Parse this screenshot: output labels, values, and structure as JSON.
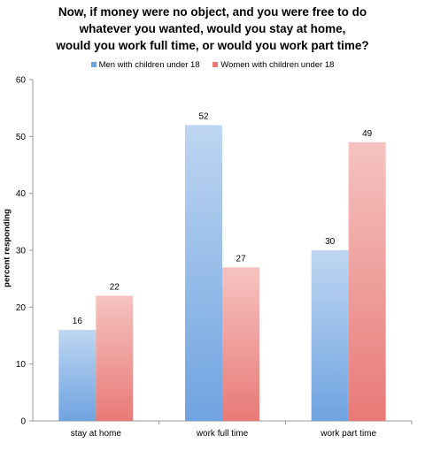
{
  "title_lines": [
    "Now, if money were no object, and you were free to do",
    "whatever you wanted, would you stay at home,",
    "would you work full time, or would you work part time?"
  ],
  "chart_data": {
    "type": "bar",
    "title": "Now, if money were no object, and you were free to do whatever you wanted, would you stay at home, would you work full time, or would you work part time?",
    "categories": [
      "stay at home",
      "work full time",
      "work part time"
    ],
    "series": [
      {
        "name": "Men with children under 18",
        "values": [
          16,
          52,
          30
        ],
        "color": "#6fa3e0"
      },
      {
        "name": "Women with children under 18",
        "values": [
          22,
          27,
          49
        ],
        "color": "#e87a76"
      }
    ],
    "xlabel": "",
    "ylabel": "percent responding",
    "ylim": [
      0,
      60
    ],
    "yticks": [
      0,
      10,
      20,
      30,
      40,
      50,
      60
    ],
    "grid": false,
    "legend_position": "top"
  }
}
